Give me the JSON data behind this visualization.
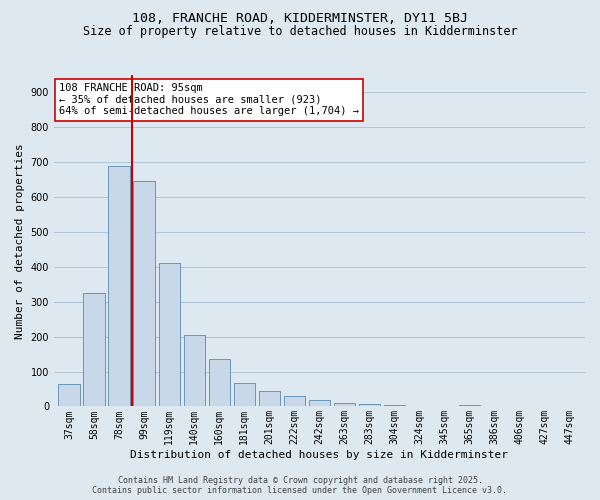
{
  "title_line1": "108, FRANCHE ROAD, KIDDERMINSTER, DY11 5BJ",
  "title_line2": "Size of property relative to detached houses in Kidderminster",
  "xlabel": "Distribution of detached houses by size in Kidderminster",
  "ylabel": "Number of detached properties",
  "categories": [
    "37sqm",
    "58sqm",
    "78sqm",
    "99sqm",
    "119sqm",
    "140sqm",
    "160sqm",
    "181sqm",
    "201sqm",
    "222sqm",
    "242sqm",
    "263sqm",
    "283sqm",
    "304sqm",
    "324sqm",
    "345sqm",
    "365sqm",
    "386sqm",
    "406sqm",
    "427sqm",
    "447sqm"
  ],
  "values": [
    65,
    325,
    690,
    645,
    410,
    205,
    135,
    68,
    45,
    30,
    18,
    10,
    8,
    3,
    2,
    1,
    3,
    0,
    0,
    0,
    2
  ],
  "bar_color": "#c8d8e8",
  "bar_edge_color": "#5a8ab0",
  "bar_width": 0.85,
  "red_line_index": 3,
  "red_line_color": "#cc0000",
  "annotation_text": "108 FRANCHE ROAD: 95sqm\n← 35% of detached houses are smaller (923)\n64% of semi-detached houses are larger (1,704) →",
  "annotation_box_color": "white",
  "annotation_box_edge": "#cc0000",
  "ylim": [
    0,
    950
  ],
  "yticks": [
    0,
    100,
    200,
    300,
    400,
    500,
    600,
    700,
    800,
    900
  ],
  "grid_color": "#b0c4d8",
  "background_color": "#dde8f0",
  "footer_line1": "Contains HM Land Registry data © Crown copyright and database right 2025.",
  "footer_line2": "Contains public sector information licensed under the Open Government Licence v3.0.",
  "title_fontsize": 9.5,
  "subtitle_fontsize": 8.5,
  "axis_label_fontsize": 8,
  "tick_fontsize": 7,
  "annotation_fontsize": 7.5,
  "footer_fontsize": 6
}
